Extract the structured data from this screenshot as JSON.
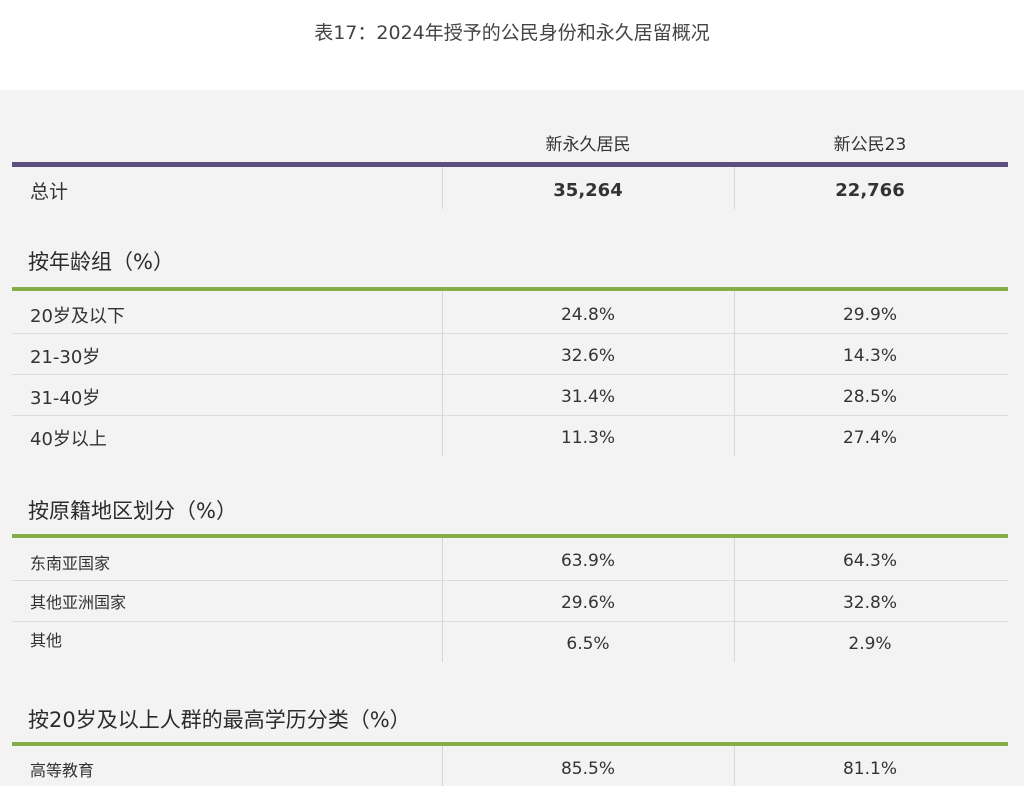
{
  "caption": "表17：2024年授予的公民身份和永久居留概况",
  "columns": [
    "新永久居民",
    "新公民23"
  ],
  "total": {
    "label": "总计",
    "values": [
      "35,264",
      "22,766"
    ]
  },
  "age_section": {
    "title": "按年龄组（%）",
    "rows": [
      {
        "label": "20岁及以下",
        "values": [
          "24.8%",
          "29.9%"
        ]
      },
      {
        "label": "21-30岁",
        "values": [
          "32.6%",
          "14.3%"
        ]
      },
      {
        "label": "31-40岁",
        "values": [
          "31.4%",
          "28.5%"
        ]
      },
      {
        "label": "40岁以上",
        "values": [
          "11.3%",
          "27.4%"
        ]
      }
    ]
  },
  "origin_section": {
    "title": "按原籍地区划分（%）",
    "rows": [
      {
        "label": "东南亚国家",
        "values": [
          "63.9%",
          "64.3%"
        ]
      },
      {
        "label": "其他亚洲国家",
        "values": [
          "29.6%",
          "32.8%"
        ]
      },
      {
        "label": "其他",
        "values": [
          "6.5%",
          "2.9%"
        ]
      }
    ]
  },
  "education_section": {
    "title": "按20岁及以上人群的最高学历分类（%）",
    "rows": [
      {
        "label": "高等教育",
        "values": [
          "85.5%",
          "81.1%"
        ]
      }
    ]
  },
  "colors": {
    "header_rule": "#5a4f7e",
    "section_rule": "#86ad48",
    "panel_bg": "#f4f3f3"
  }
}
